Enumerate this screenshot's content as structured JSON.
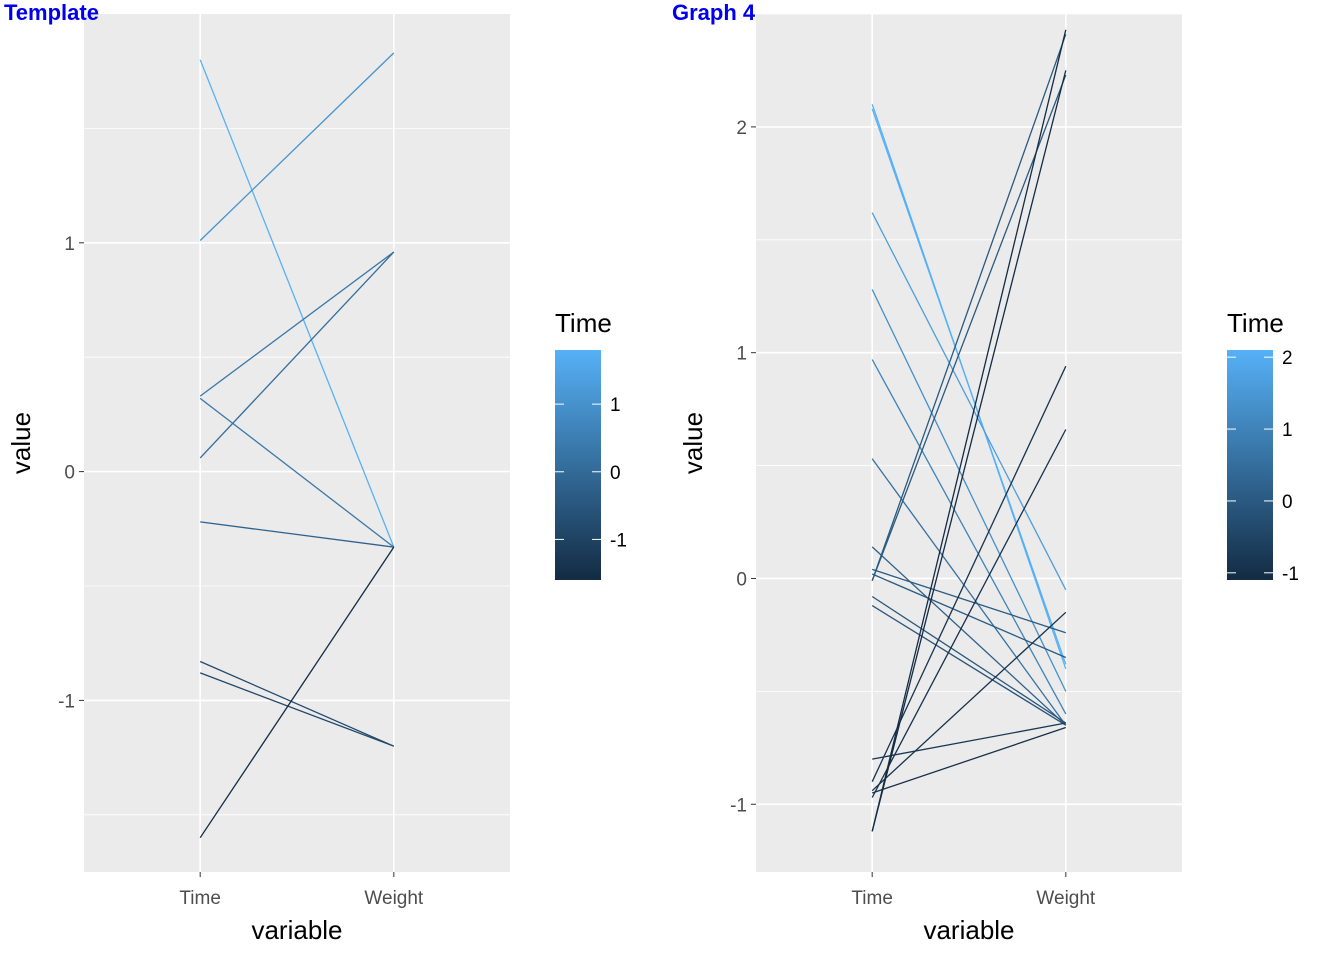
{
  "chart_data": [
    {
      "type": "line",
      "title": "Template",
      "xlabel": "variable",
      "ylabel": "value",
      "categories": [
        "Time",
        "Weight"
      ],
      "ylim": [
        -1.75,
        2.0
      ],
      "yticks": [
        -1,
        0,
        1
      ],
      "ytick_labels": [
        "-1",
        "0",
        "1"
      ],
      "grid": true,
      "background": "#ebebeb",
      "legend": {
        "title": "Time",
        "placement": "right",
        "range": [
          -1.6,
          1.8
        ],
        "ticks": [
          -1,
          0,
          1
        ],
        "tick_labels": [
          "-1",
          "0",
          "1"
        ],
        "low_color": "#132b43",
        "high_color": "#56b1f7"
      },
      "series": [
        {
          "values": [
            1.8,
            -0.33
          ]
        },
        {
          "values": [
            1.01,
            1.83
          ]
        },
        {
          "values": [
            0.33,
            0.96
          ]
        },
        {
          "values": [
            0.32,
            -0.33
          ]
        },
        {
          "values": [
            0.06,
            0.96
          ]
        },
        {
          "values": [
            -0.22,
            -0.33
          ]
        },
        {
          "values": [
            -0.83,
            -1.2
          ]
        },
        {
          "values": [
            -0.88,
            -1.2
          ]
        },
        {
          "values": [
            -1.6,
            -0.33
          ]
        }
      ]
    },
    {
      "type": "line",
      "title": "Graph 4",
      "xlabel": "variable",
      "ylabel": "value",
      "categories": [
        "Time",
        "Weight"
      ],
      "ylim": [
        -1.3,
        2.5
      ],
      "yticks": [
        -1,
        0,
        1,
        2
      ],
      "ytick_labels": [
        "-1",
        "0",
        "1",
        "2"
      ],
      "grid": true,
      "background": "#ebebeb",
      "legend": {
        "title": "Time",
        "placement": "right",
        "range": [
          -1.1,
          2.1
        ],
        "ticks": [
          -1,
          0,
          1,
          2
        ],
        "tick_labels": [
          "-1",
          "0",
          "1",
          "2"
        ],
        "low_color": "#132b43",
        "high_color": "#56b1f7"
      },
      "series": [
        {
          "values": [
            2.1,
            -0.4
          ]
        },
        {
          "values": [
            2.08,
            -0.38
          ]
        },
        {
          "values": [
            1.62,
            -0.05
          ]
        },
        {
          "values": [
            1.28,
            -0.5
          ]
        },
        {
          "values": [
            0.97,
            -0.6
          ]
        },
        {
          "values": [
            0.53,
            -0.65
          ]
        },
        {
          "values": [
            0.14,
            -0.65
          ]
        },
        {
          "values": [
            0.04,
            -0.24
          ]
        },
        {
          "values": [
            0.02,
            -0.35
          ]
        },
        {
          "values": [
            -0.01,
            2.23
          ]
        },
        {
          "values": [
            -0.01,
            2.41
          ]
        },
        {
          "values": [
            -0.08,
            -0.64
          ]
        },
        {
          "values": [
            -0.12,
            -0.65
          ]
        },
        {
          "values": [
            -0.8,
            -0.64
          ]
        },
        {
          "values": [
            -0.9,
            0.94
          ]
        },
        {
          "values": [
            -0.94,
            -0.15
          ]
        },
        {
          "values": [
            -0.95,
            -0.66
          ]
        },
        {
          "values": [
            -0.97,
            0.66
          ]
        },
        {
          "values": [
            -1.12,
            2.43
          ]
        },
        {
          "values": [
            -1.12,
            2.25
          ]
        }
      ]
    }
  ]
}
